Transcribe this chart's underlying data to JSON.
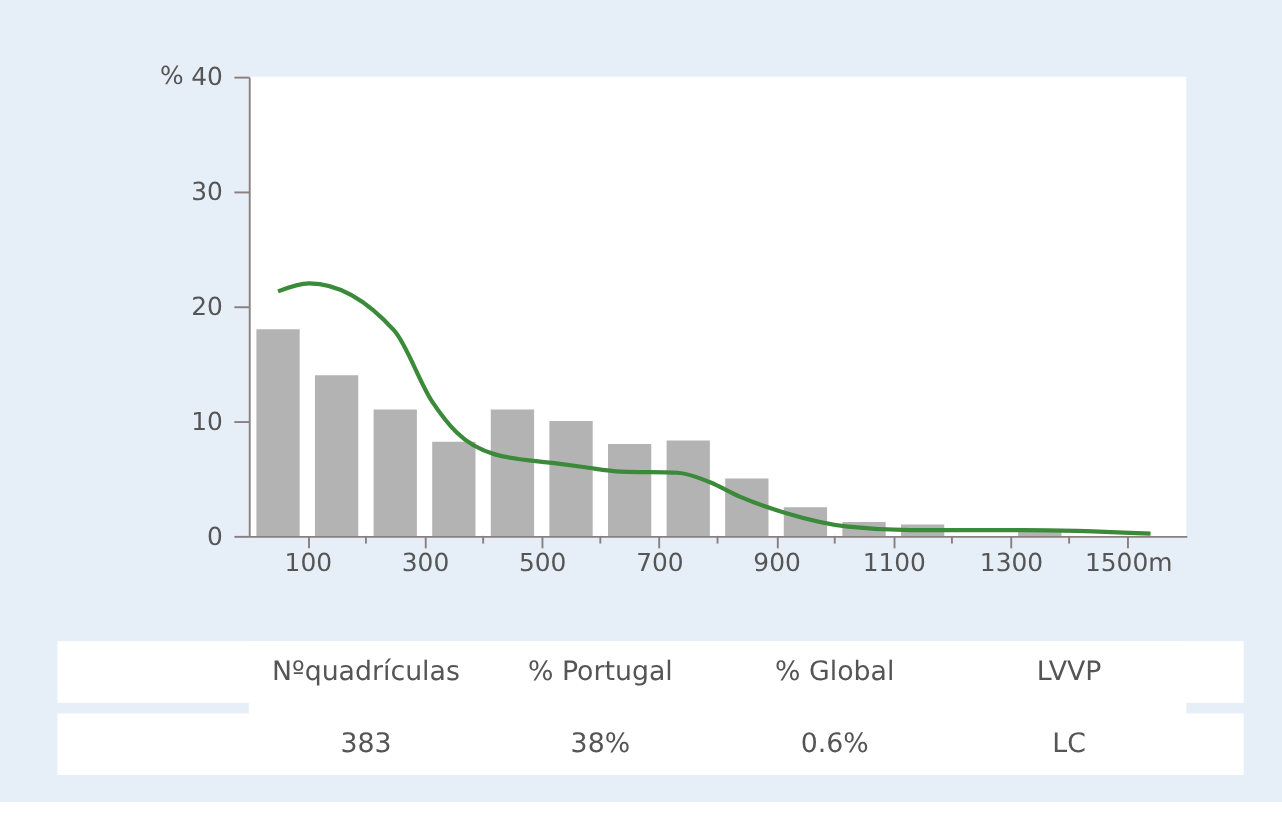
{
  "chart_data": {
    "type": "histogram",
    "ylabel": "%",
    "bins": [
      0,
      100,
      200,
      300,
      400,
      500,
      600,
      700,
      800,
      900,
      1000,
      1100,
      1200,
      1300,
      1400,
      1500
    ],
    "values": [
      18,
      14,
      11,
      8.2,
      11,
      10,
      8,
      8.3,
      5,
      2.5,
      1.2,
      1,
      0,
      0.6,
      0
    ],
    "color": "#b3b3b3",
    "series": [
      {
        "type": "line",
        "color": "#3a8a3a",
        "x": [
          50,
          103,
          248,
          313,
          355,
          420,
          528,
          571,
          635,
          732,
          786,
          839,
          916,
          1023,
          1129,
          1323,
          1539
        ],
        "values": [
          21.3,
          22,
          17.9,
          11.7,
          9,
          7.1,
          6.3,
          6,
          5.6,
          5.5,
          4.7,
          3.4,
          2,
          0.8,
          0.5,
          0.5,
          0.2
        ]
      }
    ],
    "xlim": [
      0,
      1600
    ],
    "ylim": [
      0,
      40
    ],
    "xticks": [
      100,
      {
        "value": 200,
        "label": null
      },
      300,
      {
        "value": 400,
        "label": null
      },
      500,
      {
        "value": 600,
        "label": null
      },
      700,
      {
        "value": 800,
        "label": null
      },
      900,
      {
        "value": 1000,
        "label": null
      },
      1100,
      {
        "value": 1200,
        "label": null
      },
      1300,
      {
        "value": 1400,
        "label": null
      },
      {
        "value": 1500,
        "label": "1500m"
      }
    ],
    "yticks": [
      0,
      10,
      20,
      30,
      40
    ],
    "grid": false,
    "legend": false,
    "annotations": [
      "Nºquadrículas",
      "% Portugal",
      "% Global",
      "LVVP",
      "383",
      "38%",
      "0.6%",
      "LC"
    ]
  }
}
